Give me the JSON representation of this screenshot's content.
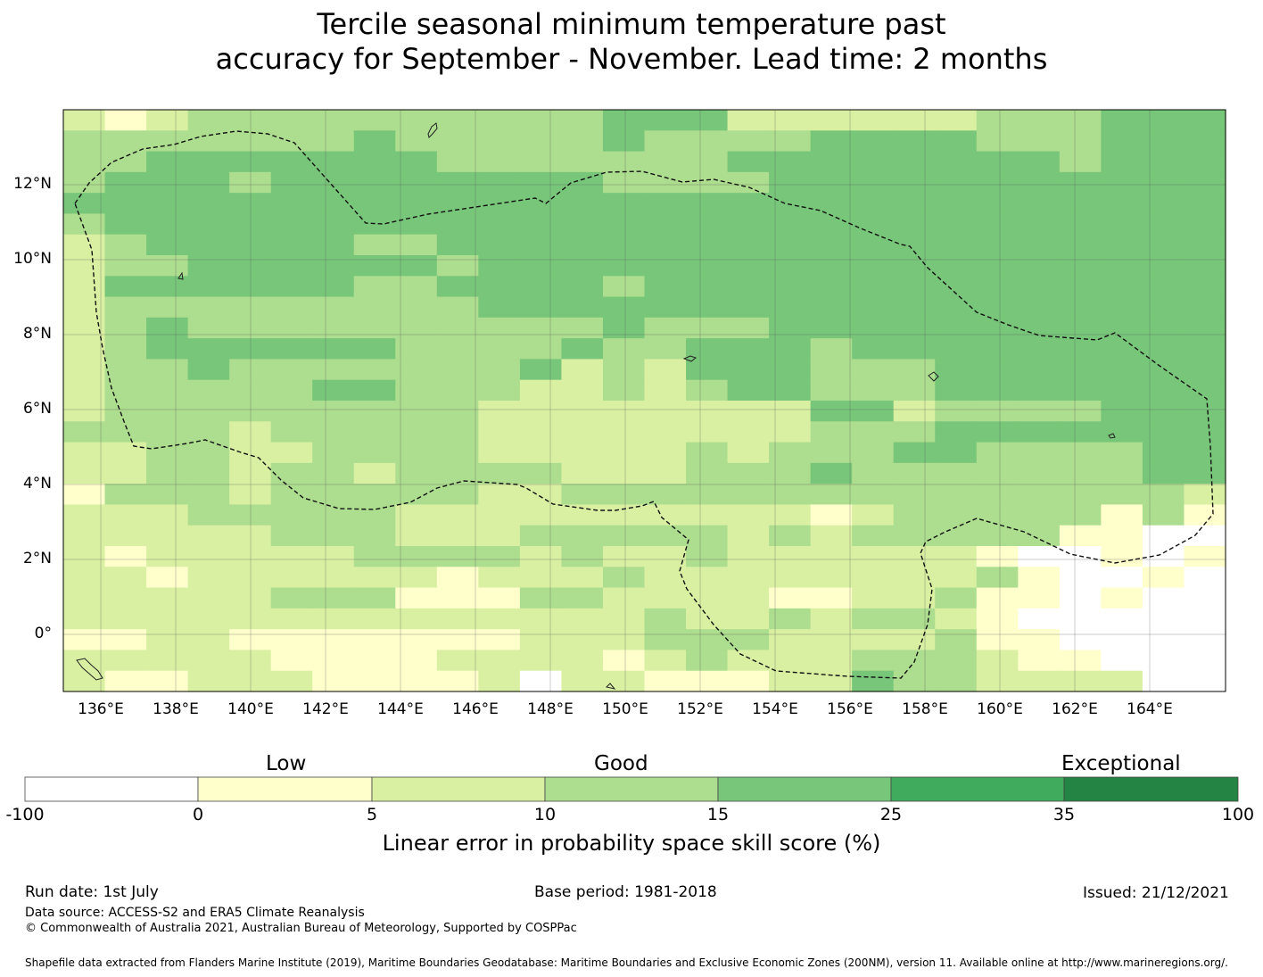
{
  "title": {
    "line1": "Tercile seasonal minimum temperature past",
    "line2": "accuracy for September - November. Lead time: 2 months"
  },
  "map": {
    "lat_labels": [
      "12°N",
      "10°N",
      "8°N",
      "6°N",
      "4°N",
      "2°N",
      "0°"
    ],
    "lon_labels": [
      "136°E",
      "138°E",
      "140°E",
      "142°E",
      "144°E",
      "146°E",
      "148°E",
      "150°E",
      "152°E",
      "154°E",
      "156°E",
      "158°E",
      "160°E",
      "162°E",
      "164°E"
    ],
    "rows": [
      "2123333333333444222222333444",
      "3333333433333433334444333444",
      "3344444443333333444444443444",
      "3444344444444333344444444444",
      "4444444444444444444444444444",
      "3444444444444444444444444444",
      "2344444334444444444444444444",
      "2334444443444444444444444444",
      "2444444334444344444444444444",
      "2333333333444444444444444444",
      "2343333333333433344444444444",
      "2344444433334334443444444444",
      "2334333333342324443334444444",
      "2333334433322323443334444444",
      "2333333333222222224423333444",
      "3333233333222222223334444444",
      "2233223333222223233344333344",
      "2233233233332223334333333344",
      "1333233333223333333333333332",
      "2223333322222222221233333131",
      "2222233322233333232333331100",
      "2122222333323223222222100101",
      "2212222221222322222222310010",
      "2222233311133222211223110100",
      "2222222222222232232332100000",
      "1122111111122233322223110000",
      "2222211112222123222333211000",
      "2112221111202211122433222200"
    ],
    "palette": [
      "#ffffcc",
      "#d9f0a3",
      "#addd8e",
      "#78c679",
      "#41ab5d",
      "#238443"
    ]
  },
  "colorbar": {
    "categories": [
      "Low",
      "Good",
      "Exceptional"
    ],
    "ticks": [
      "-100",
      "0",
      "5",
      "10",
      "15",
      "25",
      "35",
      "100"
    ],
    "colors": [
      "#ffffff",
      "#ffffcc",
      "#d9f0a3",
      "#addd8e",
      "#78c679",
      "#41ab5d",
      "#238443"
    ],
    "label": "Linear error in probability space skill score (%)"
  },
  "footer": {
    "run_date": "Run date: 1st July",
    "base_period": "Base period: 1981-2018",
    "issued": "Issued: 21/12/2021",
    "data_source": "Data source: ACCESS-S2 and ERA5 Climate Reanalysis",
    "copyright": "© Commonwealth of Australia 2021, Australian Bureau of Meteorology, Supported by COSPPac",
    "shapefile": "Shapefile data extracted from Flanders Marine Institute (2019), Maritime Boundaries Geodatabase: Maritime Boundaries and Exclusive Economic Zones (200NM), version 11. Available online at http://www.marineregions.org/."
  }
}
